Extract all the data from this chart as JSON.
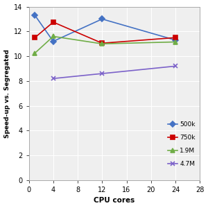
{
  "series": [
    {
      "label": "500k",
      "x": [
        1,
        4,
        12,
        24
      ],
      "y": [
        13.3,
        11.2,
        13.0,
        11.3
      ],
      "color": "#4472C4",
      "marker": "D",
      "markersize": 4
    },
    {
      "label": "750k",
      "x": [
        1,
        4,
        12,
        24
      ],
      "y": [
        11.5,
        12.75,
        11.05,
        11.5
      ],
      "color": "#CC0000",
      "marker": "s",
      "markersize": 4
    },
    {
      "label": "1.9M",
      "x": [
        1,
        4,
        12,
        24
      ],
      "y": [
        10.25,
        11.6,
        11.0,
        11.15
      ],
      "color": "#70AD47",
      "marker": "^",
      "markersize": 4
    },
    {
      "label": "4.7M",
      "x": [
        4,
        12,
        24
      ],
      "y": [
        8.2,
        8.6,
        9.2
      ],
      "color": "#7B61C9",
      "marker": "x",
      "markersize": 5
    }
  ],
  "xlabel": "CPU cores",
  "ylabel": "Speed-up vs. Segregated",
  "xlim": [
    0,
    28
  ],
  "ylim": [
    0,
    14
  ],
  "xticks": [
    0,
    4,
    8,
    12,
    16,
    20,
    24,
    28
  ],
  "yticks": [
    0,
    2,
    4,
    6,
    8,
    10,
    12,
    14
  ],
  "grid": true,
  "background_color": "#FFFFFF",
  "plot_bg_color": "#EFEFEF",
  "figsize": [
    3.0,
    3.0
  ],
  "dpi": 100
}
